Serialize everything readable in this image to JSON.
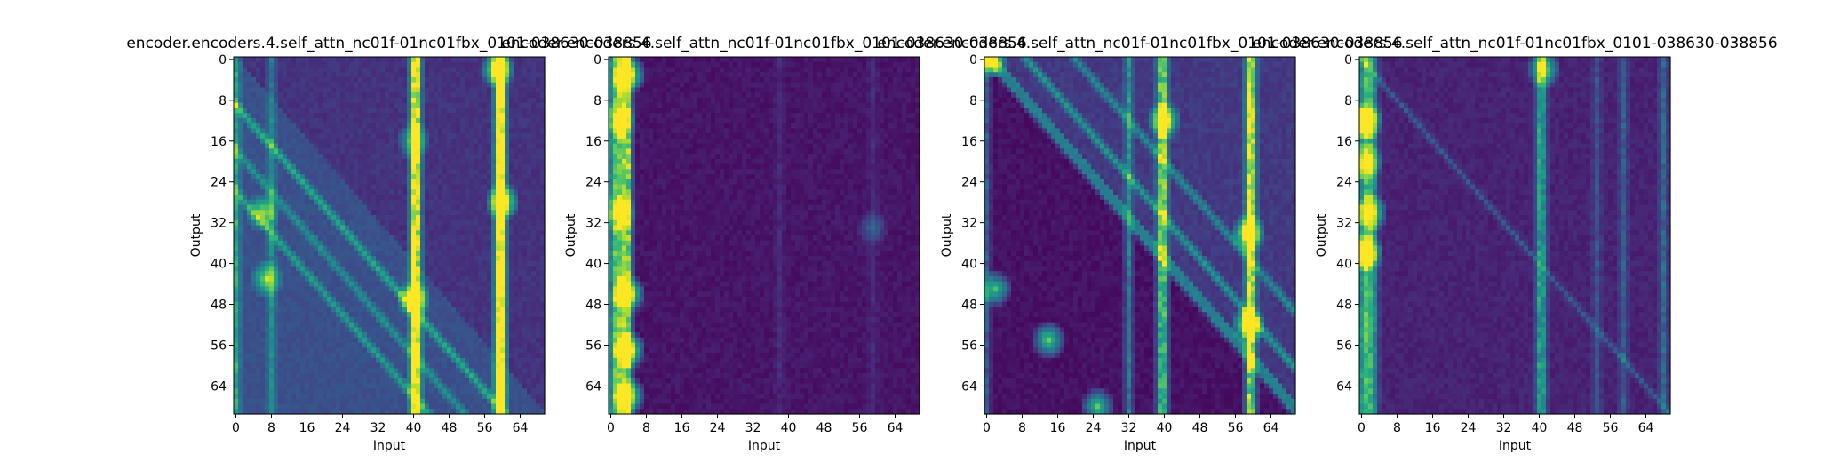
{
  "figure": {
    "background": "#ffffff",
    "colormap": "viridis"
  },
  "chart_data": [
    {
      "type": "heatmap",
      "title": "encoder.encoders.4.self_attn_nc01f-01nc01fbx_0101-038630-038856",
      "xlabel": "Input",
      "ylabel": "Output",
      "xticks": [
        "0",
        "8",
        "16",
        "24",
        "32",
        "40",
        "48",
        "56",
        "64"
      ],
      "yticks": [
        "0",
        "8",
        "16",
        "24",
        "32",
        "40",
        "48",
        "56",
        "64"
      ],
      "n_rows": 70,
      "n_cols": 70,
      "pattern": "diagonal-bright-lower",
      "columns_bright": [
        [
          0,
          0.45
        ],
        [
          8,
          0.3
        ],
        [
          40,
          0.85
        ],
        [
          41,
          0.7
        ],
        [
          59,
          0.9
        ],
        [
          60,
          0.95
        ]
      ],
      "diagonals": [
        [
          -9,
          0.35
        ],
        [
          -18,
          0.25
        ],
        [
          -26,
          0.3
        ]
      ],
      "hotspots": [
        [
          2,
          59,
          1.0
        ],
        [
          28,
          60,
          0.95
        ],
        [
          47,
          40,
          0.9
        ],
        [
          43,
          7,
          0.6
        ],
        [
          30,
          6,
          0.6
        ],
        [
          16,
          40,
          0.5
        ]
      ]
    },
    {
      "type": "heatmap",
      "title": "encoder.encoders.4.self_attn_nc01f-01nc01fbx_0101-038630-038856",
      "xlabel": "Input",
      "ylabel": "Output",
      "xticks": [
        "0",
        "8",
        "16",
        "24",
        "32",
        "40",
        "48",
        "56",
        "64"
      ],
      "yticks": [
        "0",
        "8",
        "16",
        "24",
        "32",
        "40",
        "48",
        "56",
        "64"
      ],
      "n_rows": 70,
      "n_cols": 70,
      "pattern": "left-columns",
      "columns_bright": [
        [
          0,
          0.35
        ],
        [
          1,
          0.55
        ],
        [
          2,
          0.6
        ],
        [
          3,
          0.55
        ],
        [
          4,
          0.75
        ],
        [
          38,
          0.08
        ],
        [
          59,
          0.08
        ]
      ],
      "diagonals": [],
      "hotspots": [
        [
          3,
          4,
          1.0
        ],
        [
          46,
          4,
          0.95
        ],
        [
          57,
          4,
          1.0
        ],
        [
          66,
          4,
          0.9
        ],
        [
          30,
          2,
          0.6
        ],
        [
          12,
          2,
          0.6
        ],
        [
          33,
          59,
          0.25
        ]
      ]
    },
    {
      "type": "heatmap",
      "title": "encoder.encoders.4.self_attn_nc01f-01nc01fbx_0101-038630-038856",
      "xlabel": "Input",
      "ylabel": "Output",
      "xticks": [
        "0",
        "8",
        "16",
        "24",
        "32",
        "40",
        "48",
        "56",
        "64"
      ],
      "yticks": [
        "0",
        "8",
        "16",
        "24",
        "32",
        "40",
        "48",
        "56",
        "64"
      ],
      "n_rows": 70,
      "n_cols": 70,
      "pattern": "diagonal-bright-upper",
      "columns_bright": [
        [
          0,
          0.3
        ],
        [
          32,
          0.45
        ],
        [
          39,
          0.55
        ],
        [
          40,
          0.6
        ],
        [
          59,
          0.8
        ],
        [
          60,
          0.6
        ]
      ],
      "diagonals": [
        [
          9,
          0.35
        ],
        [
          20,
          0.3
        ]
      ],
      "hotspots": [
        [
          12,
          40,
          0.95
        ],
        [
          34,
          59,
          1.0
        ],
        [
          52,
          59,
          1.0
        ],
        [
          55,
          14,
          0.75
        ],
        [
          45,
          2,
          0.65
        ],
        [
          68,
          25,
          0.7
        ],
        [
          0,
          1,
          0.9
        ]
      ]
    },
    {
      "type": "heatmap",
      "title": "encoder.encoders.4.self_attn_nc01f-01nc01fbx_0101-038630-038856",
      "xlabel": "Input",
      "ylabel": "Output",
      "xticks": [
        "0",
        "8",
        "16",
        "24",
        "32",
        "40",
        "48",
        "56",
        "64"
      ],
      "yticks": [
        "0",
        "8",
        "16",
        "24",
        "32",
        "40",
        "48",
        "56",
        "64"
      ],
      "n_rows": 70,
      "n_cols": 70,
      "pattern": "left-columns-faint",
      "columns_bright": [
        [
          0,
          0.4
        ],
        [
          1,
          0.5
        ],
        [
          2,
          0.45
        ],
        [
          3,
          0.3
        ],
        [
          40,
          0.45
        ],
        [
          41,
          0.35
        ],
        [
          53,
          0.2
        ],
        [
          59,
          0.25
        ],
        [
          68,
          0.3
        ]
      ],
      "diagonals": [
        [
          0,
          0.1
        ]
      ],
      "hotspots": [
        [
          12,
          1,
          0.95
        ],
        [
          38,
          1,
          1.0
        ],
        [
          30,
          2,
          0.8
        ],
        [
          2,
          41,
          0.7
        ],
        [
          20,
          1,
          0.7
        ]
      ]
    }
  ]
}
